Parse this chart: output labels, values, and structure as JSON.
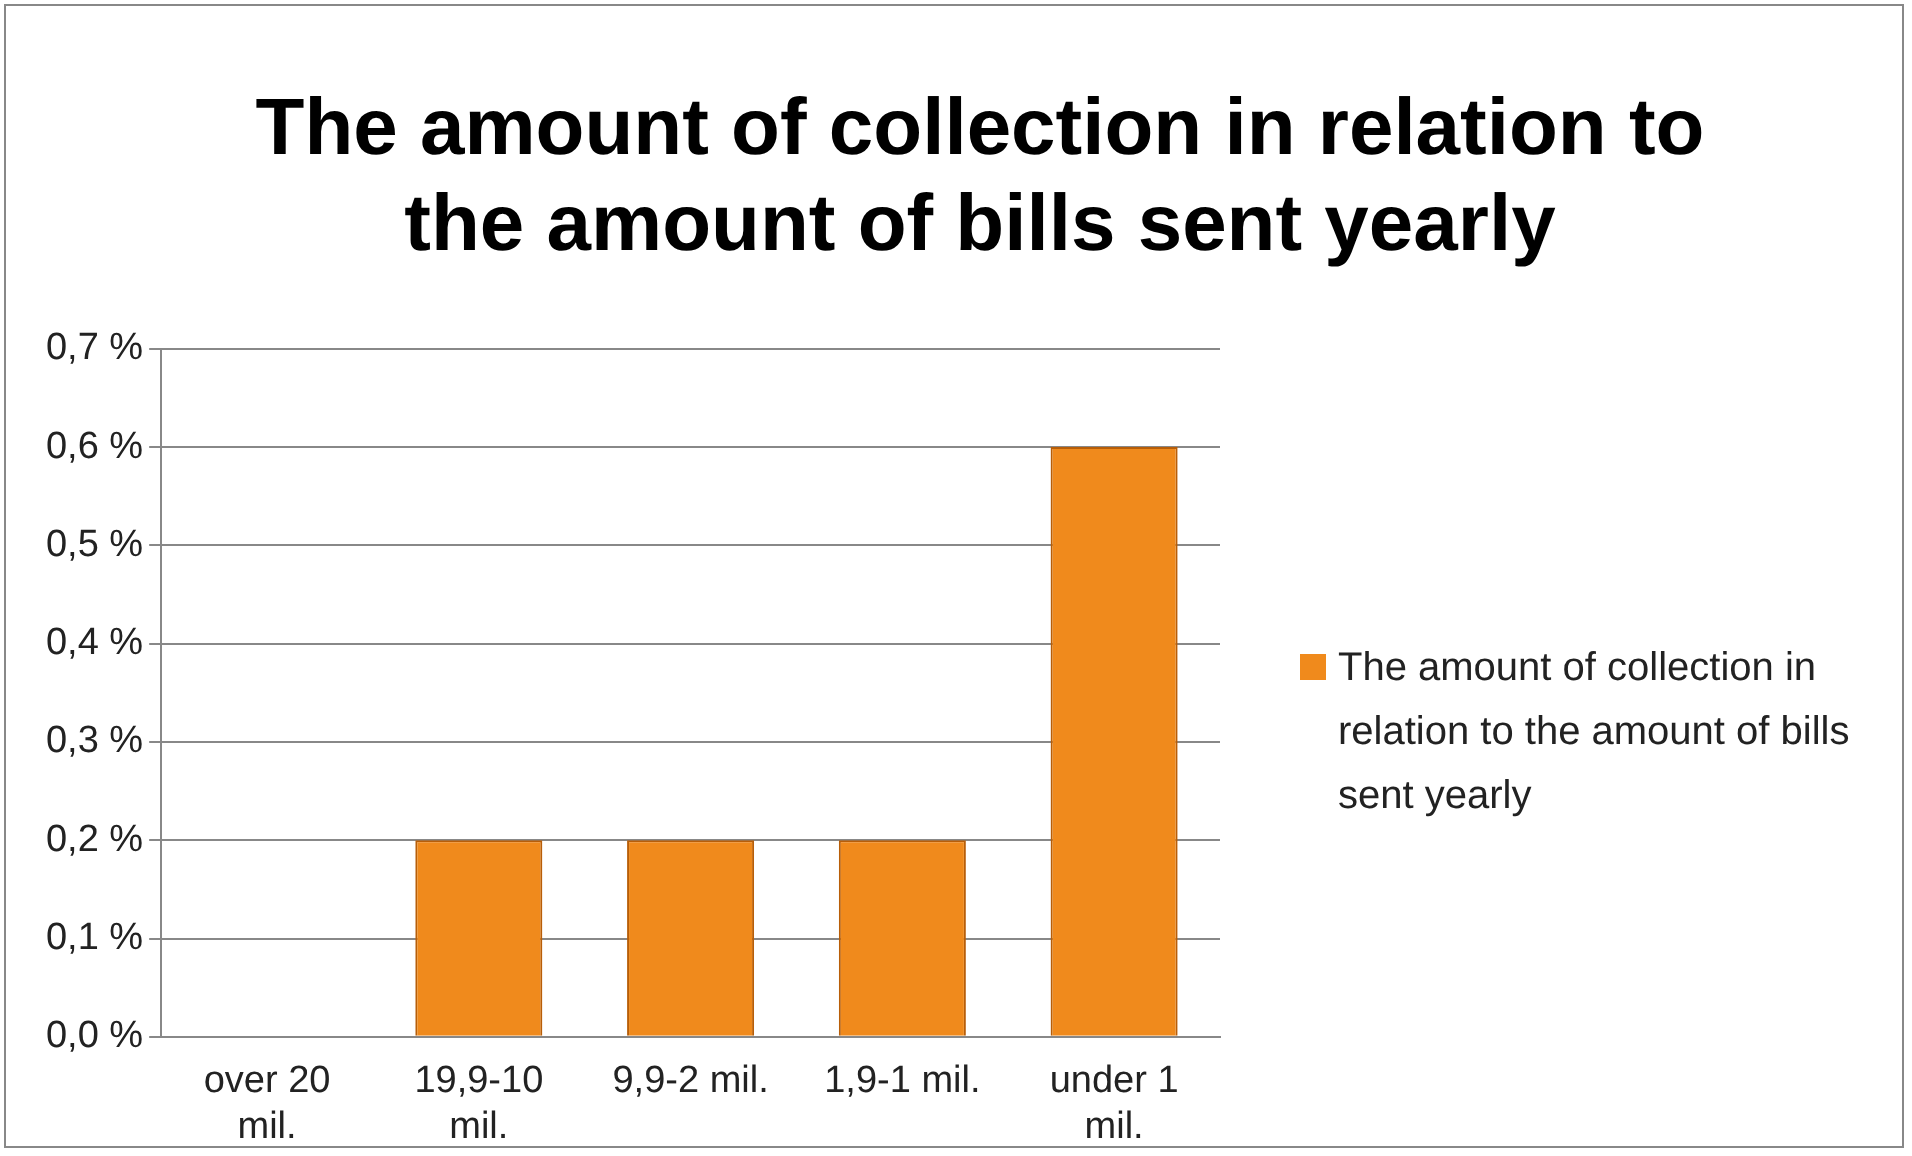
{
  "chart_data": {
    "type": "bar",
    "title": "The amount of collection in relation to the amount of bills sent yearly",
    "categories": [
      "over 20 mil.",
      "19,9-10 mil.",
      "9,9-2 mil.",
      "1,9-1 mil.",
      "under 1 mil."
    ],
    "series": [
      {
        "name": "The amount of collection in relation to the amount of bills sent yearly",
        "color": "#f08a1c",
        "values": [
          0,
          0.2,
          0.2,
          0.2,
          0.6
        ]
      }
    ],
    "ylim": [
      0,
      0.7
    ],
    "yticks": [
      {
        "value": 0,
        "label": "0,0 %"
      },
      {
        "value": 0.1,
        "label": "0,1 %"
      },
      {
        "value": 0.2,
        "label": "0,2 %"
      },
      {
        "value": 0.3,
        "label": "0,3 %"
      },
      {
        "value": 0.4,
        "label": "0,4 %"
      },
      {
        "value": 0.5,
        "label": "0,5 %"
      },
      {
        "value": 0.6,
        "label": "0,6 %"
      },
      {
        "value": 0.7,
        "label": "0,7 %"
      }
    ],
    "grid": "y",
    "legend": "right"
  }
}
